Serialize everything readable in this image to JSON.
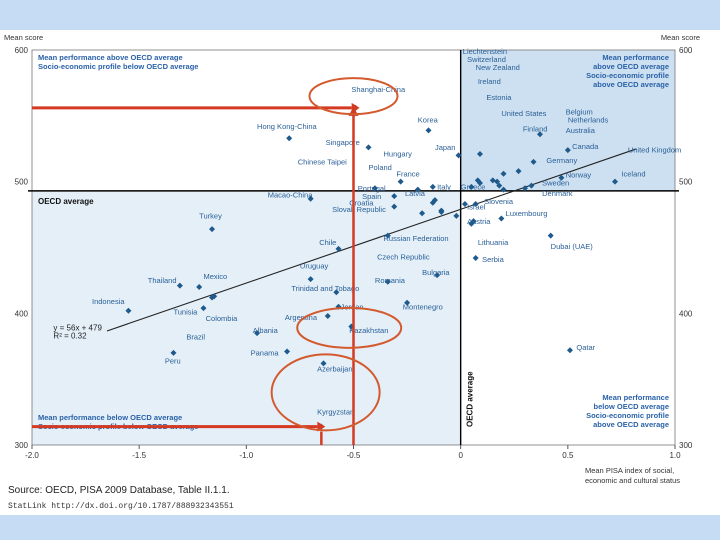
{
  "chart_data": {
    "type": "scatter",
    "ylabel_left": "Mean score",
    "ylabel_right": "Mean score",
    "xlabel": [
      "Mean PISA index of social,",
      "economic and cultural status"
    ],
    "xlim": [
      -2.0,
      1.0
    ],
    "ylim": [
      300,
      600
    ],
    "x_ticks": [
      {
        "v": -2.0,
        "label": "-2.0"
      },
      {
        "v": -1.5,
        "label": "-1.5"
      },
      {
        "v": -1.0,
        "label": "-1.0"
      },
      {
        "v": -0.5,
        "label": "-0.5"
      },
      {
        "v": 0.0,
        "label": "0"
      },
      {
        "v": 0.5,
        "label": "0.5"
      },
      {
        "v": 1.0,
        "label": "1.0"
      }
    ],
    "y_ticks": [
      {
        "v": 600,
        "label": "600"
      },
      {
        "v": 500,
        "label": "500"
      },
      {
        "v": 400,
        "label": "400"
      },
      {
        "v": 300,
        "label": "300"
      }
    ],
    "oecd_avg_score": 493,
    "oecd_avg_escs": 0.0,
    "oecd_avg_label": "OECD average",
    "regression": {
      "slope": 56,
      "intercept": 479,
      "eq": "y = 56x + 479",
      "r2": "R² = 0.32"
    },
    "quadrants": [
      {
        "pos": "top-left",
        "lines": [
          "Mean performance above OECD average",
          "Socio-economic profile below OECD average"
        ]
      },
      {
        "pos": "top-right",
        "lines": [
          "Mean performance",
          "above OECD average",
          "Socio-economic profile",
          "above OECD average"
        ]
      },
      {
        "pos": "bottom-left",
        "lines": [
          "Mean performance below OECD average",
          "Socio-economic profile below OECD average"
        ]
      },
      {
        "pos": "bottom-right",
        "lines": [
          "Mean performance",
          "below OECD average",
          "Socio-economic profile",
          "above OECD average"
        ]
      }
    ],
    "points": [
      {
        "label": "Shanghai-China",
        "x": -0.49,
        "y": 556,
        "lx": -0.51,
        "ly": 568
      },
      {
        "label": "Korea",
        "x": -0.15,
        "y": 539,
        "lx": -0.2,
        "ly": 545
      },
      {
        "label": "Hong Kong-China",
        "x": -0.8,
        "y": 533,
        "lx": -0.95,
        "ly": 540
      },
      {
        "label": "Singapore",
        "x": -0.43,
        "y": 526,
        "lx": -0.63,
        "ly": 528
      },
      {
        "label": "Japan",
        "x": -0.01,
        "y": 520,
        "lx": -0.12,
        "ly": 524
      },
      {
        "label": "Hungary",
        "x": -0.2,
        "y": 494,
        "lx": -0.36,
        "ly": 519
      },
      {
        "label": "Chinese Taipei",
        "x": -0.4,
        "y": 495,
        "lx": -0.76,
        "ly": 513
      },
      {
        "label": "Poland",
        "x": -0.28,
        "y": 500,
        "lx": -0.43,
        "ly": 509
      },
      {
        "label": "France",
        "x": -0.13,
        "y": 496,
        "lx": -0.3,
        "ly": 504
      },
      {
        "label": "Italy",
        "x": -0.12,
        "y": 486,
        "lx": -0.11,
        "ly": 494
      },
      {
        "label": "Greece",
        "x": 0.02,
        "y": 483,
        "lx": 0.0,
        "ly": 494
      },
      {
        "label": "Portugal",
        "x": -0.31,
        "y": 489,
        "lx": -0.48,
        "ly": 493
      },
      {
        "label": "Spain",
        "x": -0.31,
        "y": 481,
        "lx": -0.46,
        "ly": 487
      },
      {
        "label": "Latvia",
        "x": -0.13,
        "y": 484,
        "lx": -0.26,
        "ly": 489
      },
      {
        "label": "Macao-China",
        "x": -0.7,
        "y": 487,
        "lx": -0.9,
        "ly": 488
      },
      {
        "label": "Croatia",
        "x": -0.18,
        "y": 476,
        "lx": -0.52,
        "ly": 482
      },
      {
        "label": "Slovak Republic",
        "x": -0.09,
        "y": 477,
        "lx": -0.6,
        "ly": 477
      },
      {
        "label": "Turkey",
        "x": -1.16,
        "y": 464,
        "lx": -1.22,
        "ly": 472
      },
      {
        "label": "Chile",
        "x": -0.57,
        "y": 449,
        "lx": -0.66,
        "ly": 452
      },
      {
        "label": "Russian Federation",
        "x": -0.34,
        "y": 459,
        "lx": -0.36,
        "ly": 455
      },
      {
        "label": "Czech Republic",
        "x": -0.09,
        "y": 478,
        "lx": -0.39,
        "ly": 441
      },
      {
        "label": "Israel",
        "x": -0.02,
        "y": 474,
        "lx": 0.03,
        "ly": 479
      },
      {
        "label": "Slovenia",
        "x": 0.07,
        "y": 483,
        "lx": 0.11,
        "ly": 483
      },
      {
        "label": "Luxembourg",
        "x": 0.19,
        "y": 472,
        "lx": 0.21,
        "ly": 474
      },
      {
        "label": "Austria",
        "x": 0.06,
        "y": 470,
        "lx": 0.03,
        "ly": 468
      },
      {
        "label": "Lithuania",
        "x": 0.05,
        "y": 468,
        "lx": 0.08,
        "ly": 452
      },
      {
        "label": "Serbia",
        "x": 0.07,
        "y": 442,
        "lx": 0.1,
        "ly": 439
      },
      {
        "label": "Dubai (UAE)",
        "x": 0.42,
        "y": 459,
        "lx": 0.42,
        "ly": 449
      },
      {
        "label": "Uruguay",
        "x": -0.7,
        "y": 426,
        "lx": -0.75,
        "ly": 434
      },
      {
        "label": "Bulgaria",
        "x": -0.11,
        "y": 429,
        "lx": -0.18,
        "ly": 429
      },
      {
        "label": "Romania",
        "x": -0.34,
        "y": 424,
        "lx": -0.4,
        "ly": 423
      },
      {
        "label": "Trinidad and Tobago",
        "x": -0.58,
        "y": 416,
        "lx": -0.79,
        "ly": 417
      },
      {
        "label": "Jordan",
        "x": -0.57,
        "y": 405,
        "lx": -0.56,
        "ly": 403
      },
      {
        "label": "Montenegro",
        "x": -0.25,
        "y": 408,
        "lx": -0.27,
        "ly": 403
      },
      {
        "label": "Argentina",
        "x": -0.62,
        "y": 398,
        "lx": -0.82,
        "ly": 395
      },
      {
        "label": "Kazakhstan",
        "x": -0.51,
        "y": 390,
        "lx": -0.52,
        "ly": 385
      },
      {
        "label": "Albania",
        "x": -0.95,
        "y": 385,
        "lx": -0.97,
        "ly": 385
      },
      {
        "label": "Panama",
        "x": -0.81,
        "y": 371,
        "lx": -0.98,
        "ly": 368
      },
      {
        "label": "Azerbaijan",
        "x": -0.64,
        "y": 362,
        "lx": -0.67,
        "ly": 356
      },
      {
        "label": "Kyrgyzstan",
        "x": -0.65,
        "y": 314,
        "lx": -0.67,
        "ly": 323
      },
      {
        "label": "Mexico",
        "x": -1.22,
        "y": 420,
        "lx": -1.2,
        "ly": 426
      },
      {
        "label": "Thailand",
        "x": -1.31,
        "y": 421,
        "lx": -1.46,
        "ly": 423
      },
      {
        "label": "Indonesia",
        "x": -1.55,
        "y": 402,
        "lx": -1.72,
        "ly": 407
      },
      {
        "label": "Tunisia",
        "x": -1.2,
        "y": 404,
        "lx": -1.34,
        "ly": 399
      },
      {
        "label": "Colombia",
        "x": -1.15,
        "y": 413,
        "lx": -1.19,
        "ly": 394
      },
      {
        "label": "Brazil",
        "x": -1.16,
        "y": 412,
        "lx": -1.28,
        "ly": 380
      },
      {
        "label": "Peru",
        "x": -1.34,
        "y": 370,
        "lx": -1.38,
        "ly": 362
      },
      {
        "label": "Qatar",
        "x": 0.51,
        "y": 372,
        "lx": 0.54,
        "ly": 372
      },
      {
        "label": "Iceland",
        "x": 0.72,
        "y": 500,
        "lx": 0.75,
        "ly": 504
      },
      {
        "label": "Norway",
        "x": 0.47,
        "y": 503,
        "lx": 0.49,
        "ly": 503
      },
      {
        "label": "Denmark",
        "x": 0.3,
        "y": 495,
        "lx": 0.38,
        "ly": 489
      },
      {
        "label": "Sweden",
        "x": 0.33,
        "y": 497,
        "lx": 0.38,
        "ly": 497
      },
      {
        "label": "United Kingdom",
        "x": 0.2,
        "y": 494,
        "lx": 0.78,
        "ly": 522
      },
      {
        "label": "Germany",
        "x": 0.18,
        "y": 497,
        "lx": 0.4,
        "ly": 514
      },
      {
        "label": "Canada",
        "x": 0.5,
        "y": 524,
        "lx": 0.52,
        "ly": 525
      },
      {
        "label": "Australia",
        "x": 0.34,
        "y": 515,
        "lx": 0.49,
        "ly": 537
      },
      {
        "label": "Netherlands",
        "x": 0.27,
        "y": 508,
        "lx": 0.5,
        "ly": 545
      },
      {
        "label": "Belgium",
        "x": 0.2,
        "y": 506,
        "lx": 0.49,
        "ly": 551
      },
      {
        "label": "Finland",
        "x": 0.37,
        "y": 536,
        "lx": 0.29,
        "ly": 538
      },
      {
        "label": "United States",
        "x": 0.17,
        "y": 500,
        "lx": 0.19,
        "ly": 550
      },
      {
        "label": "Estonia",
        "x": 0.15,
        "y": 501,
        "lx": 0.12,
        "ly": 562
      },
      {
        "label": "Ireland",
        "x": 0.05,
        "y": 496,
        "lx": 0.08,
        "ly": 574
      },
      {
        "label": "New Zealand",
        "x": 0.09,
        "y": 521,
        "lx": 0.07,
        "ly": 585
      },
      {
        "label": "Switzerland",
        "x": 0.08,
        "y": 501,
        "lx": 0.03,
        "ly": 591
      },
      {
        "label": "Liechtenstein",
        "x": 0.09,
        "y": 499,
        "lx": 0.01,
        "ly": 597
      }
    ],
    "highlight_circles": [
      "Shanghai-China",
      "Kazakhstan",
      "Kyrgyzstan"
    ],
    "source": "Source: OECD, PISA 2009 Database, Table II.1.1.",
    "statlink": "StatLink  http://dx.doi.org/10.1787/888932343551",
    "colors": {
      "point": "#1f5a8c",
      "label": "#2a5f96",
      "quadrant_text": "#2a62a8",
      "bg_upper_right": "#cde0f1",
      "bg_lower_left": "#e4eff8",
      "arrow": "#d43a22",
      "circle": "#d45a2e",
      "slide_bg": "#c6dcf5"
    }
  }
}
